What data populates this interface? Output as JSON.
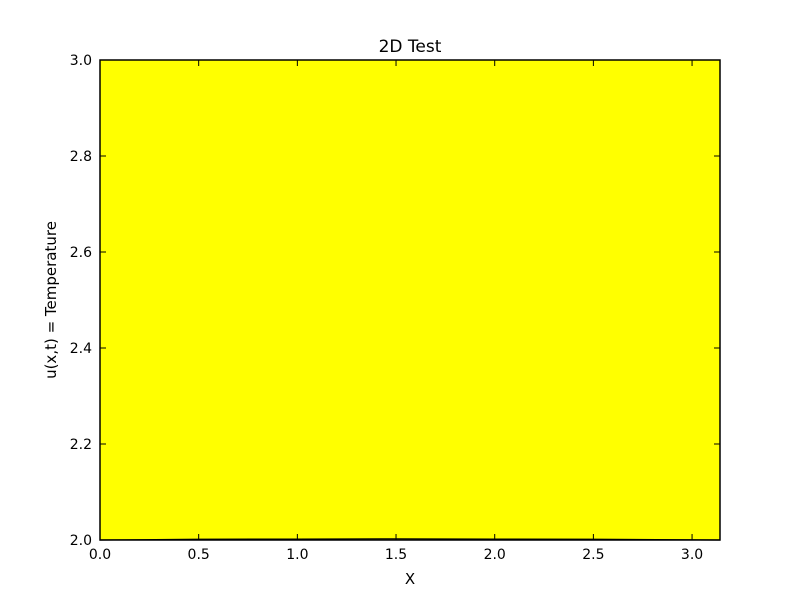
{
  "chart_data": {
    "type": "area",
    "title": "2D Test",
    "xlabel": "X",
    "ylabel": "u(x,t) = Temperature",
    "xlim": [
      0.0,
      3.14159
    ],
    "ylim": [
      2.0,
      3.0
    ],
    "x_ticks": [
      0.0,
      0.5,
      1.0,
      1.5,
      2.0,
      2.5,
      3.0
    ],
    "x_tick_labels": [
      "0.0",
      "0.5",
      "1.0",
      "1.5",
      "2.0",
      "2.5",
      "3.0"
    ],
    "y_ticks": [
      2.0,
      2.2,
      2.4,
      2.6,
      2.8,
      3.0
    ],
    "y_tick_labels": [
      "2.0",
      "2.2",
      "2.4",
      "2.6",
      "2.8",
      "3.0"
    ],
    "grid": false,
    "series": [
      {
        "name": "filled region",
        "x": [
          0.0,
          0.5,
          1.0,
          1.5,
          2.0,
          2.5,
          3.14159
        ],
        "y_lower": [
          2.0,
          2.0,
          2.0,
          2.0,
          2.0,
          2.0,
          2.0
        ],
        "y_upper": [
          3.0,
          3.0,
          3.0,
          3.0,
          3.0,
          3.0,
          3.0
        ],
        "color": "#ffff00"
      },
      {
        "name": "temperature line",
        "x": [
          0.0,
          0.5,
          1.0,
          1.5,
          2.0,
          2.5,
          3.14159
        ],
        "y": [
          2.0,
          2.0015,
          2.002,
          2.0025,
          2.002,
          2.0015,
          2.0
        ],
        "color": "#000000"
      }
    ],
    "colors": {
      "fill": "#ffff00",
      "line": "#000000",
      "axes": "#000000",
      "background": "#ffffff"
    }
  }
}
